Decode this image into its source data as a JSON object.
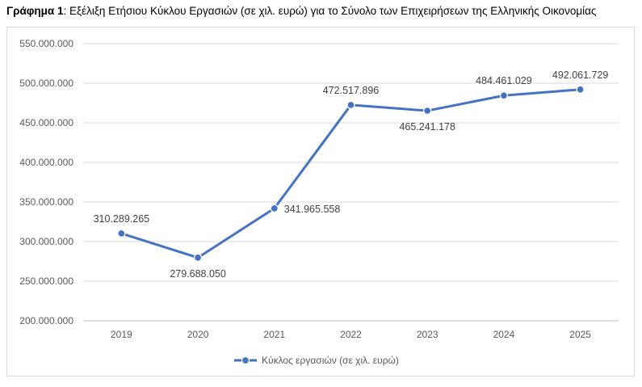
{
  "caption": {
    "label": "Γράφημα 1",
    "text": ": Εξέλιξη Ετήσιου Κύκλου Εργασιών (σε χιλ. ευρώ) για το Σύνολο των Επιχειρήσεων της Ελληνικής Οικονομίας"
  },
  "chart_data": {
    "type": "line",
    "title": "Γράφημα 1: Εξέλιξη Ετήσιου Κύκλου Εργασιών (σε χιλ. ευρώ) για το Σύνολο των Επιχειρήσεων της Ελληνικής Οικονομίας",
    "categories": [
      "2019",
      "2020",
      "2021",
      "2022",
      "2023",
      "2024",
      "2025"
    ],
    "series": [
      {
        "name": "Κύκλος εργασιών (σε χιλ. ευρώ)",
        "values": [
          310289265,
          279688050,
          341965558,
          472517896,
          465241178,
          484461029,
          492061729
        ],
        "labels": [
          "310.289.265",
          "279.688.050",
          "341.965.558",
          "472.517.896",
          "465.241.178",
          "484.461.029",
          "492.061.729"
        ],
        "color": "#4472c4"
      }
    ],
    "ylim": [
      200000000,
      550000000
    ],
    "yticks": [
      200000000,
      250000000,
      300000000,
      350000000,
      400000000,
      450000000,
      500000000,
      550000000
    ],
    "ytick_labels": [
      "200.000.000",
      "250.000.000",
      "300.000.000",
      "350.000.000",
      "400.000.000",
      "450.000.000",
      "500.000.000",
      "550.000.000"
    ],
    "grid": true,
    "legend": "bottom",
    "xlabel": "",
    "ylabel": ""
  },
  "colors": {
    "line": "#4472c4",
    "grid": "#d9d9d9",
    "axis": "#bfbfbf"
  }
}
